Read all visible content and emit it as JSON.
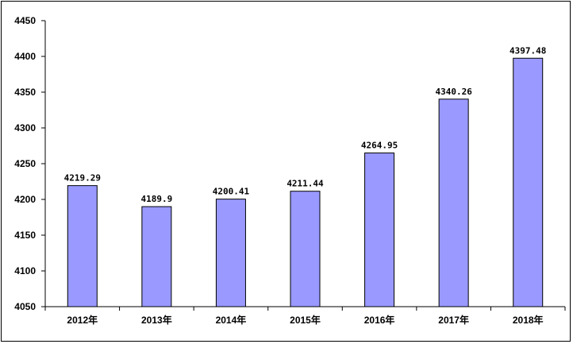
{
  "chart_data": {
    "type": "bar",
    "categories": [
      "2012年",
      "2013年",
      "2014年",
      "2015年",
      "2016年",
      "2017年",
      "2018年"
    ],
    "values": [
      4219.29,
      4189.9,
      4200.41,
      4211.44,
      4264.95,
      4340.26,
      4397.48
    ],
    "value_labels": [
      "4219.29",
      "4189.9",
      "4200.41",
      "4211.44",
      "4264.95",
      "4340.26",
      "4397.48"
    ],
    "title": "",
    "xlabel": "",
    "ylabel": "",
    "ylim": [
      4050,
      4450
    ],
    "yticks": [
      4050,
      4100,
      4150,
      4200,
      4250,
      4300,
      4350,
      4400,
      4450
    ],
    "grid": false,
    "legend": "none",
    "bar_color": "#9999ff",
    "bar_edge_color": "#000000"
  }
}
